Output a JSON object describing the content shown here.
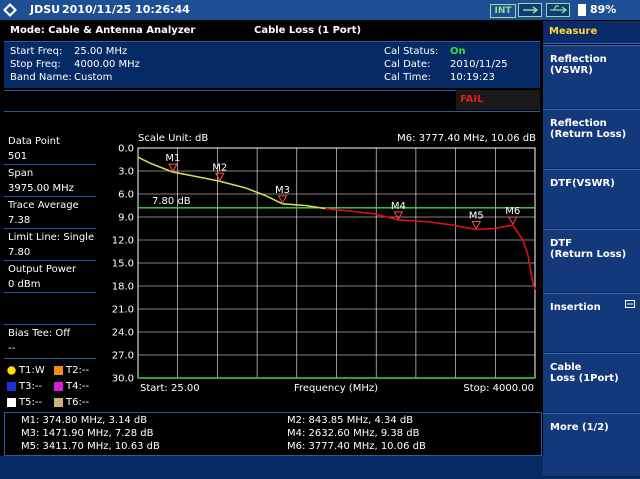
{
  "status_bar": {
    "brand": "JDSU",
    "datetime": "2010/11/25 10:26:44",
    "int_label": "INT",
    "battery_pct": "89%"
  },
  "header": {
    "mode": "Mode: Cable & Antenna Analyzer",
    "measurement": "Cable Loss (1 Port)",
    "start_freq_label": "Start Freq:",
    "start_freq_value": "25.00 MHz",
    "stop_freq_label": "Stop Freq:",
    "stop_freq_value": "4000.00 MHz",
    "band_label": "Band Name:",
    "band_value": "Custom",
    "cal_status_label": "Cal Status:",
    "cal_status_value": "On",
    "cal_date_label": "Cal Date:",
    "cal_date_value": "2010/11/25",
    "cal_time_label": "Cal Time:",
    "cal_time_value": "10:19:23",
    "fail": "FAIL"
  },
  "left_panel": {
    "data_point_label": "Data Point",
    "data_point_value": "501",
    "span_label": "Span",
    "span_value": "3975.00 MHz",
    "trace_avg_label": "Trace Average",
    "trace_avg_value": "7.38",
    "limit_label": "Limit Line: Single",
    "limit_value": "7.80",
    "output_label": "Output Power",
    "output_value": "0 dBm",
    "bias_label": "Bias Tee: Off",
    "bias_value": "--",
    "traces": [
      {
        "label": "T1:W",
        "color": "#ffe000"
      },
      {
        "label": "T2:--",
        "color": "#f08c1a"
      },
      {
        "label": "T3:--",
        "color": "#1a32d8"
      },
      {
        "label": "T4:--",
        "color": "#d81ad8"
      },
      {
        "label": "T5:--",
        "color": "#ffffff"
      },
      {
        "label": "T6:--",
        "color": "#c8b878"
      }
    ]
  },
  "chart": {
    "scale_unit": "Scale Unit: dB",
    "active_marker": "M6: 3777.40 MHz, 10.06 dB",
    "limit_label": "7.80 dB",
    "start_label": "Start: 25.00",
    "x_label": "Frequency (MHz)",
    "stop_label": "Stop: 4000.00"
  },
  "chart_data": {
    "type": "line",
    "title": "Cable Loss (1 Port)",
    "xlabel": "Frequency (MHz)",
    "ylabel": "dB",
    "xlim": [
      25,
      4000
    ],
    "ylim": [
      30,
      0
    ],
    "y_ticks": [
      "0.0",
      "3.0",
      "6.0",
      "9.0",
      "12.0",
      "15.0",
      "18.0",
      "21.0",
      "24.0",
      "27.0",
      "30.0"
    ],
    "limit_line": 7.8,
    "pass_color": "#d8d860",
    "fail_color": "#e01010",
    "limit_color": "#3cd83c",
    "trace_points": [
      [
        25,
        1.2
      ],
      [
        150,
        2.0
      ],
      [
        374.8,
        3.14
      ],
      [
        600,
        3.7
      ],
      [
        843.85,
        4.34
      ],
      [
        1100,
        5.2
      ],
      [
        1300,
        6.2
      ],
      [
        1471.9,
        7.28
      ],
      [
        1700,
        7.5
      ],
      [
        1900,
        7.9
      ],
      [
        2200,
        8.3
      ],
      [
        2400,
        8.6
      ],
      [
        2632.6,
        9.38
      ],
      [
        2900,
        9.6
      ],
      [
        3150,
        10.0
      ],
      [
        3411.7,
        10.63
      ],
      [
        3600,
        10.5
      ],
      [
        3777.4,
        10.06
      ],
      [
        3880,
        12.0
      ],
      [
        3930,
        14.0
      ],
      [
        3970,
        17.0
      ],
      [
        4000,
        18.5
      ]
    ],
    "markers": [
      {
        "name": "M1",
        "x": 374.8,
        "y": 3.14
      },
      {
        "name": "M2",
        "x": 843.85,
        "y": 4.34
      },
      {
        "name": "M3",
        "x": 1471.9,
        "y": 7.28
      },
      {
        "name": "M4",
        "x": 2632.6,
        "y": 9.38
      },
      {
        "name": "M5",
        "x": 3411.7,
        "y": 10.63
      },
      {
        "name": "M6",
        "x": 3777.4,
        "y": 10.06
      }
    ]
  },
  "marker_table": [
    "M1: 374.80 MHz, 3.14 dB",
    "M2: 843.85 MHz, 4.34 dB",
    "M3: 1471.90 MHz, 7.28 dB",
    "M4: 2632.60 MHz, 9.38 dB",
    "M5: 3411.70 MHz, 10.63 dB",
    "M6: 3777.40 MHz, 10.06 dB"
  ],
  "softkeys": {
    "title": "Measure",
    "items": [
      "Reflection\n(VSWR)",
      "Reflection\n(Return Loss)",
      "DTF(VSWR)",
      "DTF\n(Return Loss)",
      "Insertion",
      "Cable\nLoss (1Port)",
      "More (1/2)"
    ]
  }
}
